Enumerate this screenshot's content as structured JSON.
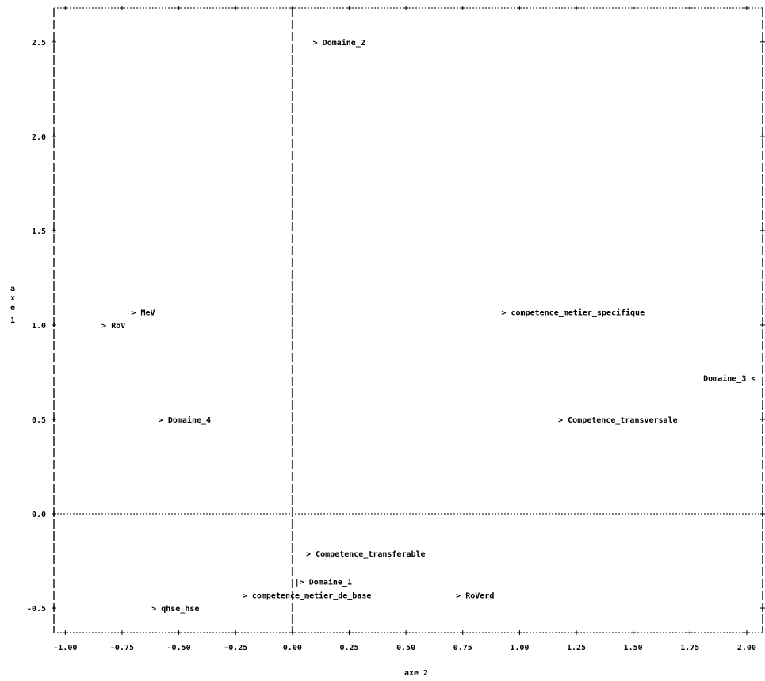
{
  "chart_data": {
    "type": "scatter",
    "title": "",
    "xlabel": "axe 2",
    "ylabel_letters": [
      "a",
      "x",
      "e",
      "1"
    ],
    "xlim": [
      -1.05,
      2.07
    ],
    "ylim": [
      -0.63,
      2.68
    ],
    "x_ticks": [
      -1.0,
      -0.75,
      -0.5,
      -0.25,
      0.0,
      0.25,
      0.5,
      0.75,
      1.0,
      1.25,
      1.5,
      1.75,
      2.0
    ],
    "x_tick_labels": [
      "-1.00",
      "-0.75",
      "-0.50",
      "-0.25",
      "0.00",
      "0.25",
      "0.50",
      "0.75",
      "1.00",
      "1.25",
      "1.50",
      "1.75",
      "2.00"
    ],
    "y_ticks": [
      -0.5,
      0.0,
      0.5,
      1.0,
      1.5,
      2.0,
      2.5
    ],
    "y_tick_labels": [
      "-0.5",
      "0.0",
      "0.5",
      "1.0",
      "1.5",
      "2.0",
      "2.5"
    ],
    "grid": false,
    "points": [
      {
        "text": "> Domaine_2",
        "x": 0.09,
        "y": 2.5,
        "anchor": "start"
      },
      {
        "text": "> MeV",
        "x": -0.71,
        "y": 1.07,
        "anchor": "start"
      },
      {
        "text": "> RoV",
        "x": -0.84,
        "y": 1.0,
        "anchor": "start"
      },
      {
        "text": "> competence_metier_specifique",
        "x": 0.92,
        "y": 1.07,
        "anchor": "start"
      },
      {
        "text": "Domaine_3 <",
        "x": 2.04,
        "y": 0.72,
        "anchor": "end"
      },
      {
        "text": "> Domaine_4",
        "x": -0.59,
        "y": 0.5,
        "anchor": "start"
      },
      {
        "text": "> Competence_transversale",
        "x": 1.17,
        "y": 0.5,
        "anchor": "start"
      },
      {
        "text": "> Competence_transferable",
        "x": 0.06,
        "y": -0.21,
        "anchor": "start"
      },
      {
        "text": "|> Domaine_1",
        "x": 0.01,
        "y": -0.36,
        "anchor": "start"
      },
      {
        "text": "> competence_metier_de_base",
        "x": -0.22,
        "y": -0.43,
        "anchor": "start"
      },
      {
        "text": "> RoVerd",
        "x": 0.72,
        "y": -0.43,
        "anchor": "start"
      },
      {
        "text": "> qhse_hse",
        "x": -0.62,
        "y": -0.5,
        "anchor": "start"
      }
    ]
  }
}
